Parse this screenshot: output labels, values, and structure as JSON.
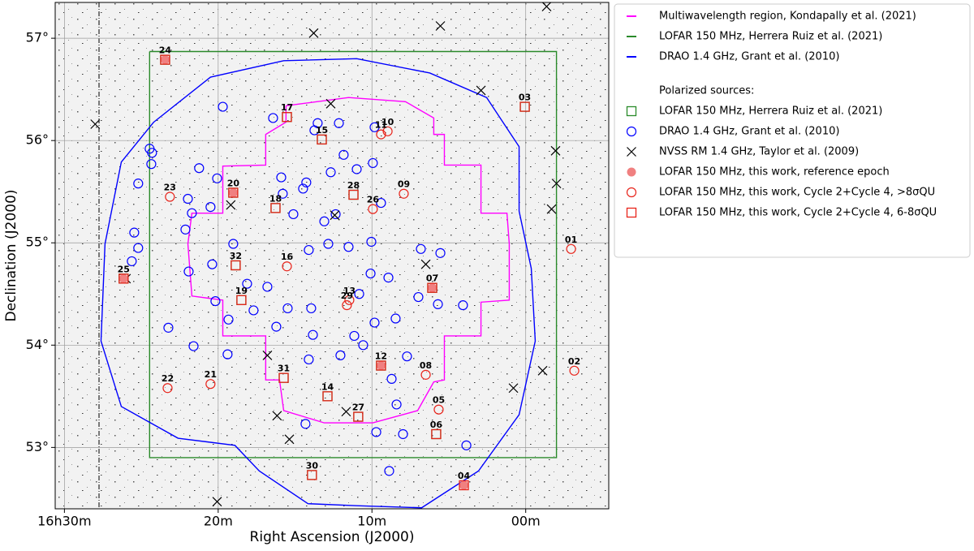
{
  "chart_data": {
    "type": "scatter",
    "xlabel": "Right Ascension (J2000)",
    "ylabel": "Declination (J2000)",
    "xlim": [
      30.6,
      -5.4
    ],
    "ylim": [
      52.4,
      57.35
    ],
    "xticks": [
      {
        "value": 30,
        "label": "16h30m"
      },
      {
        "value": 20,
        "label": "20m"
      },
      {
        "value": 10,
        "label": "10m"
      },
      {
        "value": 0,
        "label": "00m"
      }
    ],
    "yticks": [
      {
        "value": 53,
        "label": "53°"
      },
      {
        "value": 54,
        "label": "54°"
      },
      {
        "value": 55,
        "label": "55°"
      },
      {
        "value": 56,
        "label": "56°"
      },
      {
        "value": 57,
        "label": "57°"
      }
    ],
    "grid": true,
    "legend_title": "Polarized sources:",
    "series": [
      {
        "name": "Multiwavelength region, Kondapally et al. (2021)",
        "color": "#ff00ff",
        "marker": "line",
        "x": [
          15.59,
          11.52,
          7.82,
          5.98,
          5.98,
          5.29,
          5.29,
          2.91,
          2.91,
          1.22,
          1.07,
          1.07,
          2.91,
          2.91,
          5.29,
          5.29,
          5.98,
          7.03,
          9.94,
          13.1,
          15.74,
          16.01,
          16.91,
          16.91,
          19.7,
          19.7,
          21.71,
          21.97,
          21.71,
          19.7,
          19.7,
          16.91,
          16.91,
          15.59,
          15.59
        ],
        "y": [
          56.34,
          56.42,
          56.38,
          56.22,
          56.06,
          56.06,
          55.76,
          55.76,
          55.29,
          55.29,
          54.99,
          54.44,
          54.42,
          54.09,
          54.09,
          53.66,
          53.64,
          53.36,
          53.24,
          53.24,
          53.36,
          53.66,
          53.66,
          54.09,
          54.09,
          54.44,
          54.48,
          54.99,
          55.29,
          55.29,
          55.75,
          55.76,
          56.06,
          56.18,
          56.34
        ]
      },
      {
        "name": "LOFAR 150 MHz, Herrera Ruiz et al. (2021)",
        "color": "#2a8a2a",
        "marker": "line",
        "x": [
          24.46,
          -2.0,
          -2.0,
          24.46,
          24.46
        ],
        "y": [
          56.87,
          56.87,
          52.9,
          52.9,
          56.87
        ]
      },
      {
        "name": "DRAO 1.4 GHz, Grant et al. (2010)",
        "color": "#0000ff",
        "marker": "line",
        "x": [
          24.19,
          20.5,
          15.74,
          10.99,
          6.24,
          2.54,
          0.43,
          0.43,
          -0.36,
          -0.62,
          0.43,
          3.07,
          6.77,
          10.99,
          14.16,
          17.33,
          18.91,
          22.61,
          26.3,
          27.62,
          27.36,
          26.3,
          24.19
        ],
        "y": [
          56.18,
          56.62,
          56.78,
          56.8,
          56.66,
          56.42,
          55.94,
          55.31,
          54.75,
          54.04,
          53.32,
          52.77,
          52.41,
          52.43,
          52.45,
          52.77,
          53.02,
          53.09,
          53.4,
          54.04,
          54.99,
          55.79,
          56.18
        ]
      },
      {
        "name": "LOFAR 150 MHz, Herrera Ruiz et al. (2021)",
        "color": "#2a8a2a",
        "marker": "square",
        "x": [
          0.06,
          5.82,
          6.08,
          9.41,
          12.89,
          15.53,
          16.27,
          19.02,
          23.45,
          26.15,
          10.89,
          13.9,
          15.74,
          18.86,
          18.49,
          11.2,
          13.26
        ],
        "y": [
          56.33,
          53.13,
          54.56,
          53.8,
          53.5,
          56.23,
          55.34,
          55.49,
          56.79,
          54.65,
          53.3,
          52.73,
          53.68,
          54.78,
          54.44,
          55.47,
          56.01
        ]
      },
      {
        "name": "DRAO 1.4 GHz, Grant et al. (2010)",
        "color": "#0000ff",
        "marker": "circle",
        "x": [
          19.7,
          16.43,
          13.53,
          12.15,
          13.74,
          9.83,
          24.46,
          24.3,
          24.35,
          25.2,
          21.24,
          20.07,
          21.97,
          20.5,
          21.71,
          22.13,
          15.9,
          14.27,
          14.48,
          15.8,
          11.84,
          9.94,
          12.68,
          10.99,
          12.36,
          9.41,
          13.1,
          15.11,
          25.46,
          25.2,
          25.62,
          19.02,
          20.39,
          21.92,
          20.18,
          19.33,
          18.12,
          17.7,
          16.8,
          15.48,
          14.11,
          12.84,
          11.52,
          10.04,
          6.82,
          5.55,
          10.09,
          8.93,
          6.98,
          5.71,
          4.08,
          8.46,
          9.83,
          11.15,
          13.84,
          16.22,
          14.11,
          12.05,
          10.57,
          7.72,
          8.72,
          8.4,
          19.39,
          21.6,
          23.24,
          10.83,
          13.95,
          9.72,
          7.98,
          14.32,
          3.86,
          8.88
        ],
        "y": [
          56.33,
          56.22,
          56.17,
          56.17,
          56.1,
          56.13,
          55.92,
          55.88,
          55.77,
          55.58,
          55.73,
          55.63,
          55.43,
          55.35,
          55.29,
          55.13,
          55.64,
          55.59,
          55.53,
          55.48,
          55.86,
          55.78,
          55.69,
          55.72,
          55.28,
          55.39,
          55.21,
          55.28,
          55.1,
          54.95,
          54.82,
          54.99,
          54.79,
          54.72,
          54.43,
          54.25,
          54.6,
          54.34,
          54.57,
          54.36,
          54.93,
          54.99,
          54.96,
          55.01,
          54.94,
          54.9,
          54.7,
          54.66,
          54.47,
          54.4,
          54.39,
          54.26,
          54.22,
          54.09,
          54.1,
          54.18,
          53.86,
          53.9,
          54.0,
          53.89,
          53.67,
          53.42,
          53.91,
          53.99,
          54.17,
          54.5,
          54.36,
          53.15,
          53.13,
          53.23,
          53.02,
          52.77
        ]
      },
      {
        "name": "NVSS RM 1.4 GHz, Taylor et al. (2009)",
        "color": "#000000",
        "marker": "x",
        "x": [
          13.79,
          5.55,
          -1.36,
          2.91,
          28.0,
          -1.94,
          -2.0,
          -1.68,
          -1.1,
          0.8,
          20.07,
          12.68,
          12.42,
          6.5,
          19.18,
          16.8,
          16.17,
          15.37,
          11.68,
          25.99
        ],
        "y": [
          57.05,
          57.12,
          57.31,
          56.49,
          56.16,
          55.9,
          55.58,
          55.33,
          53.75,
          53.58,
          52.47,
          56.36,
          55.27,
          54.79,
          55.37,
          53.9,
          53.31,
          53.08,
          53.35,
          54.65
        ]
      },
      {
        "name": "LOFAR 150 MHz, this work, reference epoch",
        "color": "#f08080",
        "marker": "filled-circle",
        "x": [
          23.45,
          26.15,
          19.02,
          9.41,
          6.08,
          4.02
        ],
        "y": [
          56.79,
          54.65,
          55.49,
          53.8,
          54.56,
          52.63
        ]
      },
      {
        "name": "LOFAR 150 MHz, this work, Cycle 2+Cycle 4, >8σQU",
        "color": "#e8231a",
        "marker": "circle",
        "labels": [
          "01",
          "02",
          "05",
          "08",
          "09",
          "10",
          "11",
          "13",
          "16",
          "21",
          "22",
          "23",
          "26",
          "29"
        ],
        "x": [
          -2.95,
          -3.16,
          5.66,
          6.5,
          7.93,
          8.98,
          9.41,
          11.47,
          15.53,
          20.5,
          23.29,
          23.14,
          9.94,
          11.63
        ],
        "y": [
          54.94,
          53.75,
          53.37,
          53.71,
          55.48,
          56.09,
          56.06,
          54.44,
          54.77,
          53.62,
          53.58,
          55.45,
          55.33,
          54.39
        ]
      },
      {
        "name": "LOFAR 150 MHz, this work, Cycle 2+Cycle 4, 6-8σQU",
        "color": "#e8231a",
        "marker": "square",
        "labels": [
          "03",
          "04",
          "06",
          "07",
          "12",
          "14",
          "15",
          "17",
          "18",
          "19",
          "20",
          "24",
          "25",
          "27",
          "28",
          "30",
          "31",
          "32"
        ],
        "x": [
          0.06,
          4.02,
          5.82,
          6.08,
          9.41,
          12.89,
          13.26,
          15.53,
          16.27,
          18.49,
          19.02,
          23.45,
          26.15,
          10.89,
          11.2,
          13.9,
          15.74,
          18.86
        ],
        "y": [
          56.33,
          52.63,
          53.13,
          54.56,
          53.8,
          53.5,
          56.01,
          56.23,
          55.34,
          54.44,
          55.49,
          56.79,
          54.65,
          53.3,
          55.47,
          52.73,
          53.68,
          54.78
        ]
      }
    ]
  }
}
